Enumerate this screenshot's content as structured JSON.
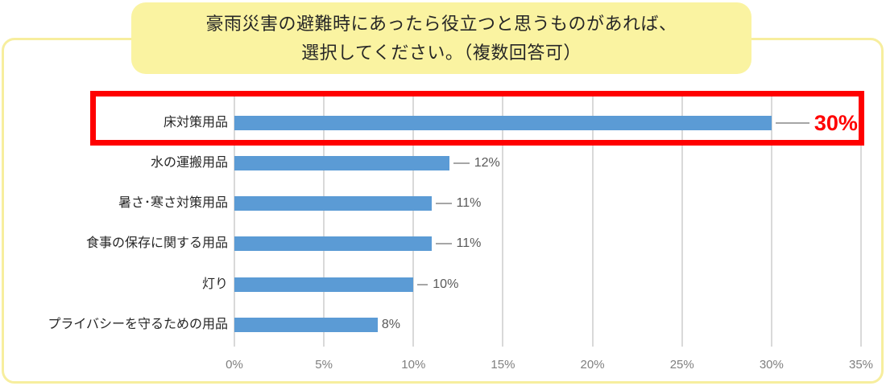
{
  "banner": {
    "line1": "豪雨災害の避難時にあったら役立つと思うものがあれば、",
    "line2": "選択してください。（複数回答可）"
  },
  "chart_data": {
    "type": "bar",
    "orientation": "horizontal",
    "title": "豪雨災害の避難時にあったら役立つと思うものがあれば、選択してください。（複数回答可）",
    "categories": [
      "床対策用品",
      "水の運搬用品",
      "暑さ･寒さ対策用品",
      "食事の保存に関する用品",
      "灯り",
      "プライバシーを守るための用品"
    ],
    "values": [
      30,
      12,
      11,
      11,
      10,
      8
    ],
    "value_labels": [
      "30%",
      "12%",
      "11%",
      "11%",
      "10%",
      "8%"
    ],
    "x_ticks": [
      "0%",
      "5%",
      "10%",
      "15%",
      "20%",
      "25%",
      "30%",
      "35%"
    ],
    "xlim": [
      0,
      35
    ],
    "grid": true,
    "legend": "none",
    "bar_color": "#5b9bd5",
    "gridline_color": "#d9d9d9",
    "axis_text_color": "#7f7f7f",
    "value_text_color": "#595959",
    "category_text_color": "#262626",
    "highlight": {
      "index": 0,
      "box_color": "#ff0000",
      "label_color": "#ff0000"
    }
  },
  "colors": {
    "banner_bg": "#faf3a1",
    "frame_border": "#f7ee9e"
  }
}
